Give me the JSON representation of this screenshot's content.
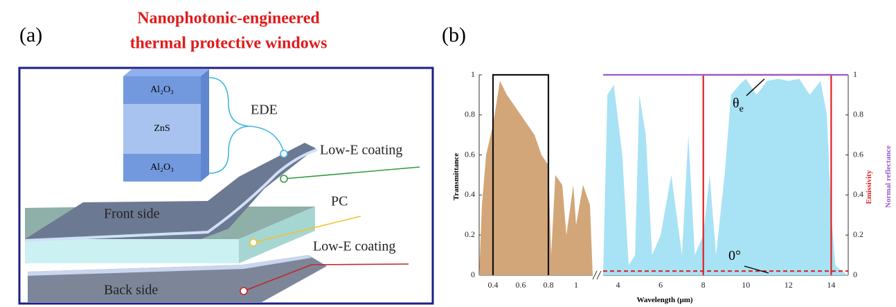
{
  "panel_a": {
    "label": "(a)",
    "title": [
      "Nanophotonic-engineered",
      "thermal protective windows"
    ],
    "stack": [
      "Al₂O₃",
      "ZnS",
      "Al₂O₃"
    ],
    "labels": {
      "ede": "EDE",
      "low_e_top": "Low-E coating",
      "pc": "PC",
      "low_e_bottom": "Low-E coating",
      "front": "Front side",
      "back": "Back side"
    }
  },
  "chart_data": {
    "type": "line",
    "panel_label": "(b)",
    "x_label": "Wavelength (μm)",
    "y_label": "Transmittance",
    "y2_labels": [
      {
        "text": "Emissivity",
        "color": "#e02020"
      },
      {
        "text": "Normal reflectance",
        "color": "#9b59c7"
      }
    ],
    "xlims": [
      [
        0.3,
        1.12
      ],
      [
        3.3,
        14.8
      ]
    ],
    "xticks": [
      0.4,
      0.6,
      0.8,
      1,
      4,
      6,
      8,
      10,
      12,
      14
    ],
    "ylim": [
      0,
      1
    ],
    "yticks": [
      0,
      0.2,
      0.4,
      0.6,
      0.8,
      1
    ],
    "y2lim": [
      0,
      1
    ],
    "y2ticks": [
      0,
      0.2,
      0.4,
      0.6,
      0.8,
      1
    ],
    "annotations": [
      {
        "text": "θ",
        "sub": "e"
      },
      {
        "text": "0°"
      }
    ],
    "series": [
      {
        "color": "#d2a678",
        "fill": true,
        "x": [
          0.3,
          0.32,
          0.35,
          0.4,
          0.45,
          0.5,
          0.55,
          0.6,
          0.65,
          0.7,
          0.75,
          0.8,
          0.82,
          0.85,
          0.9,
          0.93,
          0.98,
          1.0,
          1.05,
          1.1,
          1.12
        ],
        "values": [
          0,
          0.35,
          0.6,
          0.75,
          0.97,
          0.9,
          0.85,
          0.8,
          0.75,
          0.7,
          0.6,
          0.55,
          0.1,
          0.5,
          0.45,
          0.2,
          0.45,
          0.25,
          0.45,
          0.35,
          0
        ]
      },
      {
        "color": "#111111",
        "x": [
          0.4,
          0.4,
          0.8,
          0.8
        ],
        "values": [
          0,
          1,
          1,
          0
        ]
      },
      {
        "color": "#a8e2f5",
        "fill": true,
        "axis": "y2",
        "x": [
          3.3,
          3.5,
          3.8,
          4.2,
          4.5,
          4.8,
          5,
          5.3,
          5.6,
          6,
          6.5,
          7,
          7.3,
          7.6,
          8,
          8.3,
          8.6,
          9,
          9.3,
          9.7,
          10,
          10.5,
          11,
          11.5,
          12,
          12.5,
          13,
          13.5,
          13.8,
          14,
          14.2,
          14.5,
          14.8
        ],
        "values": [
          0,
          0.9,
          0.95,
          0.6,
          0.05,
          0.1,
          0.9,
          0.7,
          0.1,
          0.2,
          0.5,
          0.1,
          0.7,
          0.1,
          0.2,
          0.5,
          0.1,
          0.5,
          0.9,
          0.95,
          0.98,
          0.9,
          0.97,
          0.98,
          0.97,
          0.98,
          0.9,
          0.97,
          0.8,
          0.3,
          0.05,
          0.02,
          0
        ]
      },
      {
        "color": "#e02020",
        "axis": "y2",
        "x": [
          8,
          8,
          14,
          14
        ],
        "values": [
          0,
          1,
          1,
          0
        ]
      },
      {
        "color": "#e02020",
        "axis": "y2",
        "dash": true,
        "x": [
          3.3,
          14.8
        ],
        "values": [
          0.02,
          0.02
        ]
      },
      {
        "color": "#9b59c7",
        "axis": "y2",
        "x": [
          3.3,
          14.8
        ],
        "values": [
          1,
          1
        ]
      }
    ]
  }
}
